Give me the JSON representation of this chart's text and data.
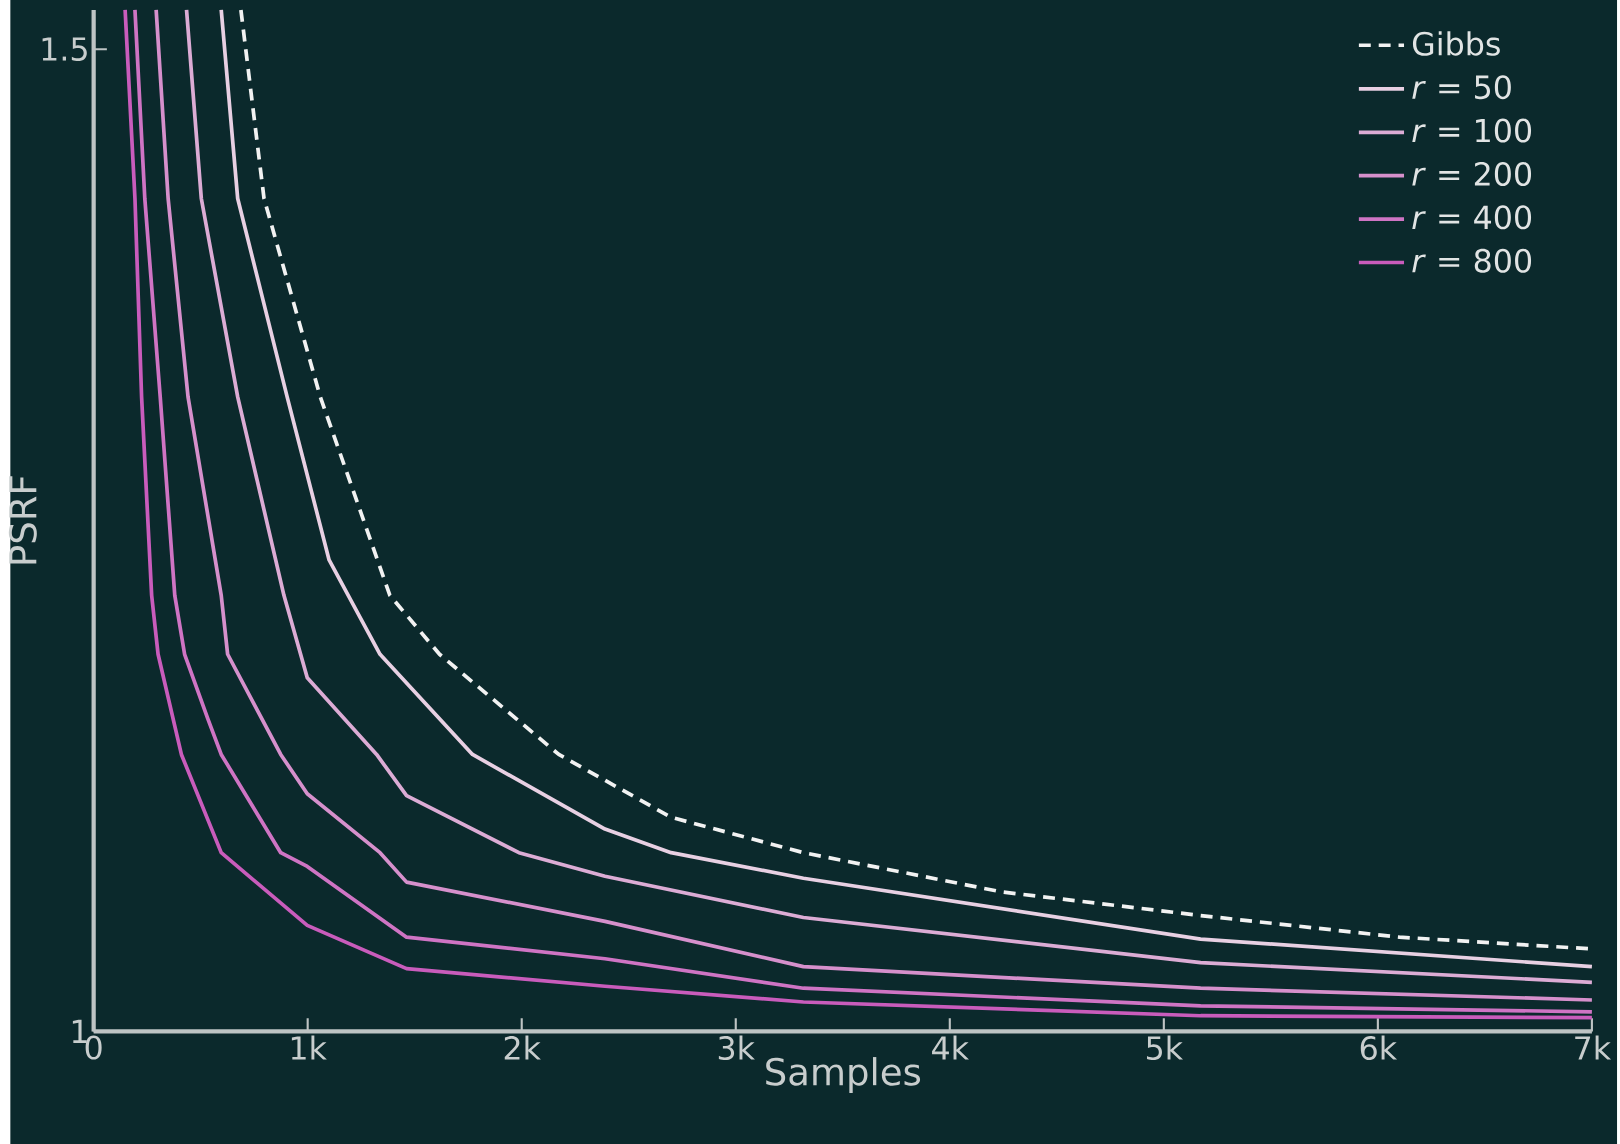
{
  "chart_data": {
    "type": "line",
    "xlabel": "Samples",
    "ylabel": "PSRF",
    "xlim": [
      0,
      7000
    ],
    "ylim": [
      1,
      1.52
    ],
    "xticks": [
      0,
      {
        "value": 1000,
        "label": "1k"
      },
      {
        "value": 2000,
        "label": "2k"
      },
      {
        "value": 3000,
        "label": "3k"
      },
      {
        "value": 4000,
        "label": "4k"
      },
      {
        "value": 5000,
        "label": "5k"
      },
      {
        "value": 6000,
        "label": "6k"
      },
      {
        "value": 7000,
        "label": "7k"
      }
    ],
    "yticks": [
      1,
      1.5
    ],
    "legend": "top right",
    "grid": false,
    "marker": "none",
    "series": [
      {
        "name": "Gibbs",
        "color": "#f2f2f2",
        "line_style": "dashed",
        "x": [
          688,
          796,
          1059,
          1384,
          1616,
          2173,
          2698,
          3316,
          4244,
          5172,
          6100,
          7000
        ],
        "values": [
          1.52,
          1.424,
          1.323,
          1.222,
          1.192,
          1.141,
          1.109,
          1.091,
          1.071,
          1.059,
          1.048,
          1.042
        ]
      },
      {
        "name": "*r* = 50",
        "color": "#e8d0e3",
        "line_style": "solid",
        "x": [
          596,
          673,
          904,
          1100,
          1338,
          1770,
          2389,
          2698,
          3316,
          5172,
          7000
        ],
        "values": [
          1.52,
          1.424,
          1.323,
          1.24,
          1.192,
          1.141,
          1.103,
          1.091,
          1.078,
          1.047,
          1.033
        ]
      },
      {
        "name": "*r* = 100",
        "color": "#dcacd5",
        "line_style": "solid",
        "x": [
          434,
          503,
          673,
          889,
          998,
          1322,
          1462,
          1987,
          2389,
          3316,
          5172,
          7000
        ],
        "values": [
          1.52,
          1.424,
          1.323,
          1.222,
          1.18,
          1.141,
          1.12,
          1.091,
          1.079,
          1.058,
          1.035,
          1.025
        ]
      },
      {
        "name": "*r* = 200",
        "color": "#d690cc",
        "line_style": "solid",
        "x": [
          292,
          348,
          441,
          596,
          626,
          874,
          998,
          1338,
          1462,
          2389,
          3316,
          5172,
          7000
        ],
        "values": [
          1.52,
          1.424,
          1.323,
          1.222,
          1.192,
          1.141,
          1.121,
          1.091,
          1.076,
          1.056,
          1.033,
          1.022,
          1.016
        ]
      },
      {
        "name": "*r* = 400",
        "color": "#cf74c4",
        "line_style": "solid",
        "x": [
          193,
          239,
          311,
          379,
          425,
          534,
          596,
          874,
          998,
          1462,
          2389,
          3316,
          5172,
          7000
        ],
        "values": [
          1.52,
          1.424,
          1.323,
          1.222,
          1.192,
          1.159,
          1.141,
          1.091,
          1.084,
          1.048,
          1.037,
          1.022,
          1.013,
          1.01
        ]
      },
      {
        "name": "*r* = 800",
        "color": "#c95cbc",
        "line_style": "solid",
        "x": [
          147,
          193,
          224,
          271,
          301,
          410,
          596,
          998,
          1462,
          2389,
          3316,
          5172,
          7000
        ],
        "values": [
          1.52,
          1.424,
          1.323,
          1.222,
          1.192,
          1.141,
          1.091,
          1.054,
          1.032,
          1.023,
          1.015,
          1.008,
          1.007
        ]
      }
    ]
  }
}
